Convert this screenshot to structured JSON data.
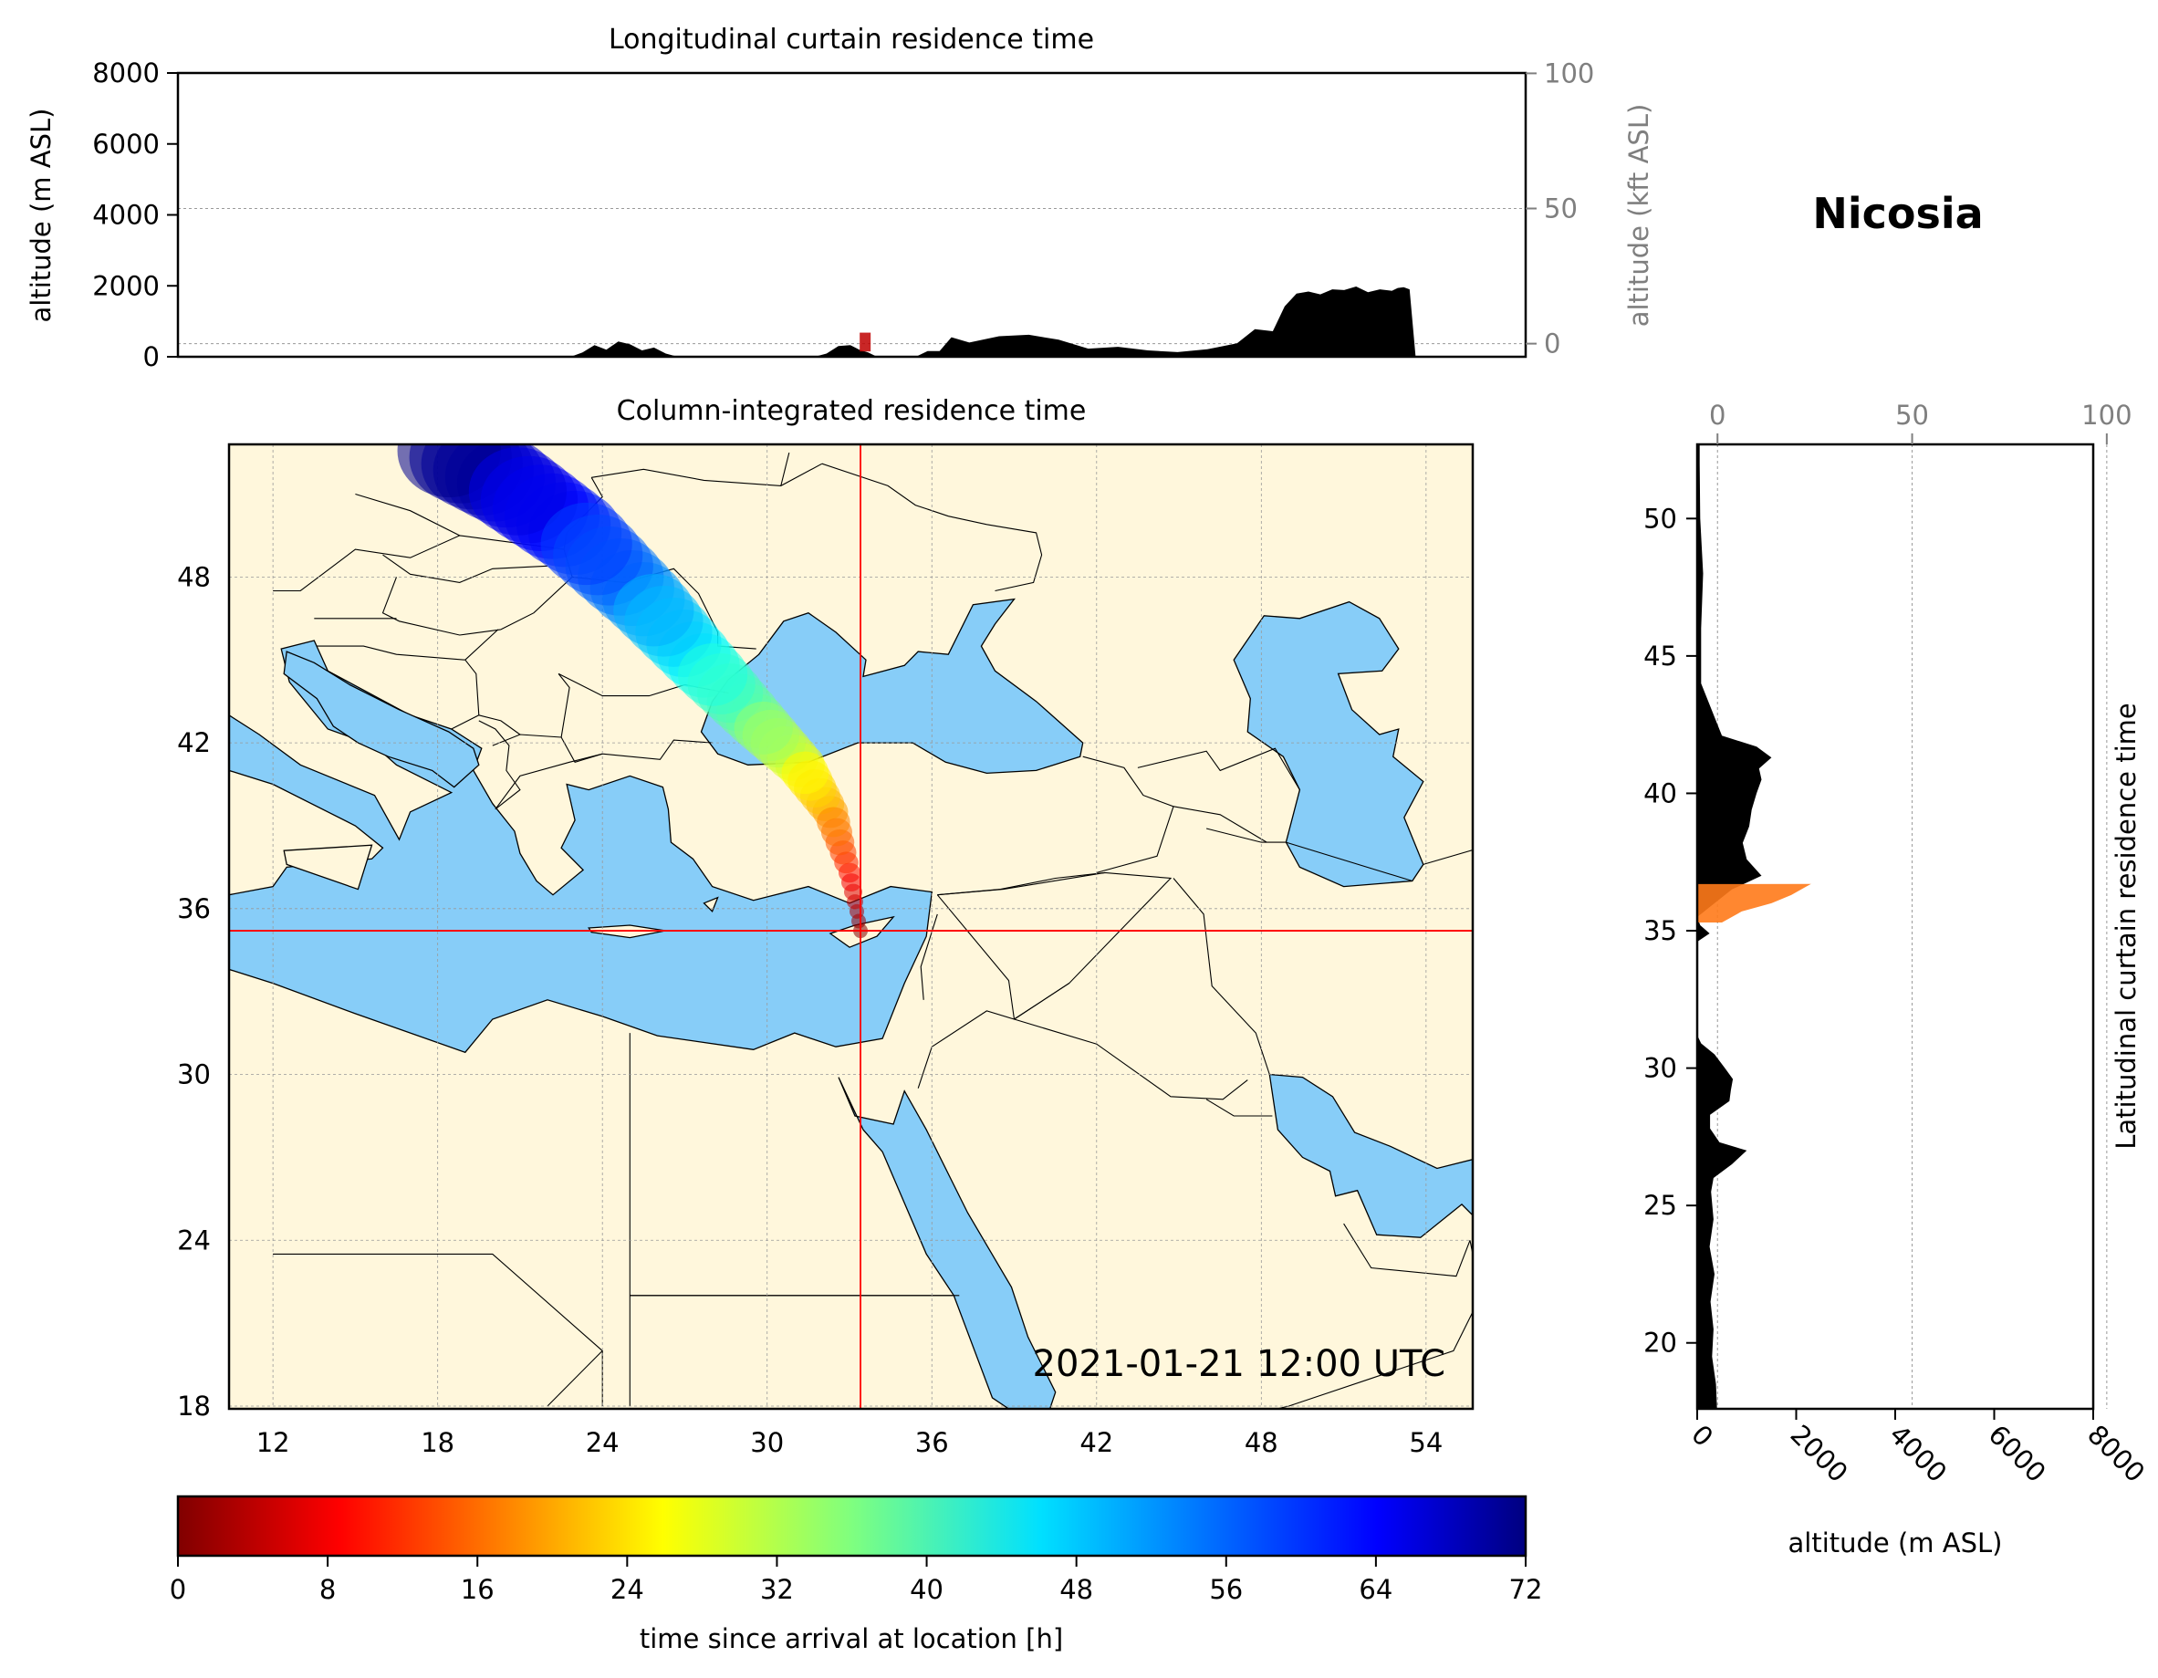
{
  "location_title": "Nicosia",
  "colors": {
    "land": "#fff7dc",
    "sea": "#87cdf8",
    "terrain": "#000000",
    "crosshair": "#ff0000",
    "grid": "#999999"
  },
  "chart_data": [
    {
      "id": "longitudinal",
      "type": "area",
      "title": "Longitudinal curtain residence time",
      "ylabel": "altitude (m ASL)",
      "ylabel_right": "altitude (kft ASL)",
      "xlim": [
        10.4,
        55.7
      ],
      "ylim": [
        0,
        8000
      ],
      "yticks": [
        "0",
        "2000",
        "4000",
        "6000",
        "8000"
      ],
      "ytick_values": [
        0,
        2000,
        4000,
        6000,
        8000
      ],
      "yticks_right": [
        "0",
        "50",
        "100"
      ],
      "yticks_right_values": [
        0,
        50,
        100
      ],
      "terrain": {
        "x": [
          23.6,
          24.0,
          24.4,
          24.8,
          25.2,
          25.6,
          26.0,
          26.4,
          26.8,
          27.2,
          31.8,
          32.2,
          32.6,
          33.0,
          33.3,
          33.6,
          33.9,
          34.4,
          34.8,
          35.2,
          35.6,
          36.0,
          36.4,
          37.0,
          38.0,
          39.0,
          40.0,
          41.0,
          42.0,
          43.0,
          44.0,
          45.0,
          46.0,
          46.6,
          47.2,
          47.6,
          48.0,
          48.4,
          48.8,
          49.2,
          49.6,
          50.0,
          50.4,
          50.8,
          51.2,
          51.4,
          51.6,
          51.8,
          52.0
        ],
        "y": [
          0,
          120,
          330,
          200,
          430,
          350,
          180,
          260,
          90,
          0,
          0,
          90,
          300,
          330,
          200,
          120,
          0,
          0,
          0,
          0,
          160,
          160,
          550,
          400,
          580,
          620,
          480,
          230,
          280,
          180,
          130,
          210,
          380,
          780,
          720,
          1420,
          1780,
          1840,
          1760,
          1900,
          1880,
          1980,
          1820,
          1900,
          1860,
          1940,
          1960,
          1900,
          0
        ]
      },
      "plume": {
        "x": 33.5,
        "y_bottom": 150,
        "y_top": 680
      }
    },
    {
      "id": "map",
      "type": "heatmap",
      "title": "Column-integrated residence time",
      "xlim": [
        10.4,
        55.7
      ],
      "ylim": [
        17.9,
        52.8
      ],
      "xticks": [
        "12",
        "18",
        "24",
        "30",
        "36",
        "42",
        "48",
        "54"
      ],
      "xtick_values": [
        12,
        18,
        24,
        30,
        36,
        42,
        48,
        54
      ],
      "yticks": [
        "18",
        "24",
        "30",
        "36",
        "42",
        "48"
      ],
      "ytick_values": [
        18,
        24,
        30,
        36,
        42,
        48
      ],
      "timestamp": "2021-01-21 12:00 UTC",
      "receptor": {
        "lon": 33.4,
        "lat": 35.2
      },
      "trajectory": {
        "lon": [
          33.4,
          33.0,
          32.3,
          31.2,
          29.6,
          27.7,
          25.5,
          23.0,
          20.5,
          18.0
        ],
        "lat": [
          35.2,
          37.3,
          39.5,
          41.2,
          42.8,
          44.8,
          47.2,
          49.6,
          51.4,
          52.8
        ],
        "hours": [
          0,
          10,
          20,
          28,
          36,
          44,
          52,
          60,
          66,
          72
        ],
        "width_deg": [
          0.4,
          0.8,
          1.3,
          1.8,
          2.2,
          2.6,
          3.0,
          3.4,
          3.6,
          3.8
        ]
      }
    },
    {
      "id": "latitudinal",
      "type": "area",
      "ylabel": "Latitudinal curtain residence time",
      "xlabel": "altitude (m ASL)",
      "xlim": [
        0,
        8000
      ],
      "ylim": [
        17.6,
        52.7
      ],
      "xticks": [
        "0",
        "2000",
        "4000",
        "6000",
        "8000"
      ],
      "xtick_values": [
        0,
        2000,
        4000,
        6000,
        8000
      ],
      "xticks_top": [
        "0",
        "50",
        "100"
      ],
      "xticks_top_values": [
        0,
        50,
        100
      ],
      "yticks": [
        "20",
        "25",
        "30",
        "35",
        "40",
        "45",
        "50"
      ],
      "ytick_values": [
        20,
        25,
        30,
        35,
        40,
        45,
        50
      ],
      "terrain": {
        "lat": [
          17.6,
          18.5,
          19.5,
          20.5,
          21.5,
          22.5,
          23.5,
          24.5,
          25.5,
          26.0,
          26.5,
          27.0,
          27.3,
          27.8,
          28.3,
          28.8,
          29.2,
          29.6,
          30.0,
          30.5,
          30.9,
          31.2,
          34.6,
          34.9,
          35.2,
          35.5,
          36.5,
          37.0,
          37.6,
          38.2,
          38.8,
          39.4,
          40.0,
          40.5,
          40.9,
          41.3,
          41.7,
          42.1,
          44.0,
          46.0,
          48.0,
          50.0,
          52.0,
          52.7
        ],
        "alt": [
          400,
          380,
          300,
          330,
          270,
          350,
          250,
          330,
          280,
          330,
          700,
          1000,
          450,
          260,
          260,
          650,
          680,
          720,
          560,
          350,
          80,
          0,
          0,
          250,
          60,
          0,
          700,
          1300,
          1000,
          920,
          1050,
          1100,
          1200,
          1300,
          1250,
          1500,
          1200,
          500,
          80,
          80,
          120,
          60,
          50,
          50
        ]
      },
      "plume": {
        "lat": [
          35.3,
          35.7,
          36.0,
          36.3,
          36.6,
          36.7
        ],
        "alt": [
          500,
          900,
          1500,
          1900,
          2200,
          2300
        ]
      }
    }
  ],
  "colorbar": {
    "label": "time since arrival at location [h]",
    "min": 0,
    "max": 72,
    "ticks": [
      "0",
      "8",
      "16",
      "24",
      "32",
      "40",
      "48",
      "56",
      "64",
      "72"
    ],
    "tick_values": [
      0,
      8,
      16,
      24,
      32,
      40,
      48,
      56,
      64,
      72
    ],
    "colormap": "jet_r"
  }
}
